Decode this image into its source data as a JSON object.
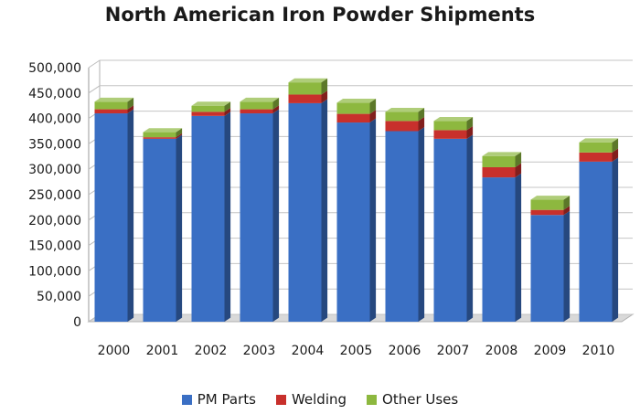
{
  "chart_data": {
    "type": "bar",
    "stacked": true,
    "title": "North American Iron Powder Shipments",
    "categories": [
      "2000",
      "2001",
      "2002",
      "2003",
      "2004",
      "2005",
      "2006",
      "2007",
      "2008",
      "2009",
      "2010"
    ],
    "series": [
      {
        "name": "PM Parts",
        "color": "#3a6fc4",
        "values": [
          410000,
          360000,
          405000,
          410000,
          430000,
          392000,
          375000,
          360000,
          284000,
          210000,
          315000
        ]
      },
      {
        "name": "Welding",
        "color": "#c8302c",
        "values": [
          8000,
          3000,
          8000,
          8000,
          17000,
          17000,
          20000,
          17000,
          20000,
          10000,
          18000
        ]
      },
      {
        "name": "Other Uses",
        "color": "#8db83f",
        "values": [
          15000,
          10000,
          12000,
          15000,
          24000,
          22000,
          18000,
          18000,
          22000,
          20000,
          20000
        ]
      }
    ],
    "ylim": [
      0,
      500000
    ],
    "yticks": [
      "0",
      "50,000",
      "100,000",
      "150,000",
      "200,000",
      "250,000",
      "300,000",
      "350,000",
      "400,000",
      "450,000",
      "500,000"
    ],
    "ytick_values": [
      0,
      50000,
      100000,
      150000,
      200000,
      250000,
      300000,
      350000,
      400000,
      450000,
      500000
    ],
    "grid": true,
    "legend": "bottom"
  }
}
